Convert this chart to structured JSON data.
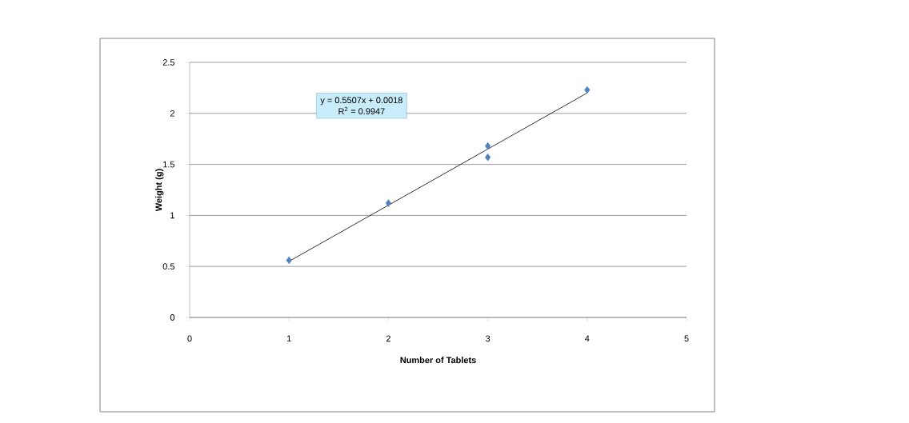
{
  "chart_data": {
    "type": "scatter",
    "xlabel": "Number of Tablets",
    "ylabel": "Weight (g)",
    "xlim": [
      0,
      5
    ],
    "ylim": [
      0,
      2.5
    ],
    "xticks": [
      0,
      1,
      2,
      3,
      4,
      5
    ],
    "yticks": [
      0,
      0.5,
      1,
      1.5,
      2,
      2.5
    ],
    "grid": "y",
    "marker": "diamond",
    "x": [
      1,
      2,
      3,
      3,
      4
    ],
    "series": [
      {
        "color": "#4f81bd",
        "values": [
          0.56,
          1.12,
          1.68,
          1.57,
          2.23
        ]
      },
      {
        "type": "line",
        "color": "#000000",
        "x": [
          1,
          4
        ],
        "values": [
          0.55,
          2.2
        ],
        "marker": "none",
        "line_style": "solid"
      }
    ],
    "annotations": [
      "y = 0.5507x + 0.0018",
      "R$^{2}$ = 0.9947"
    ]
  }
}
